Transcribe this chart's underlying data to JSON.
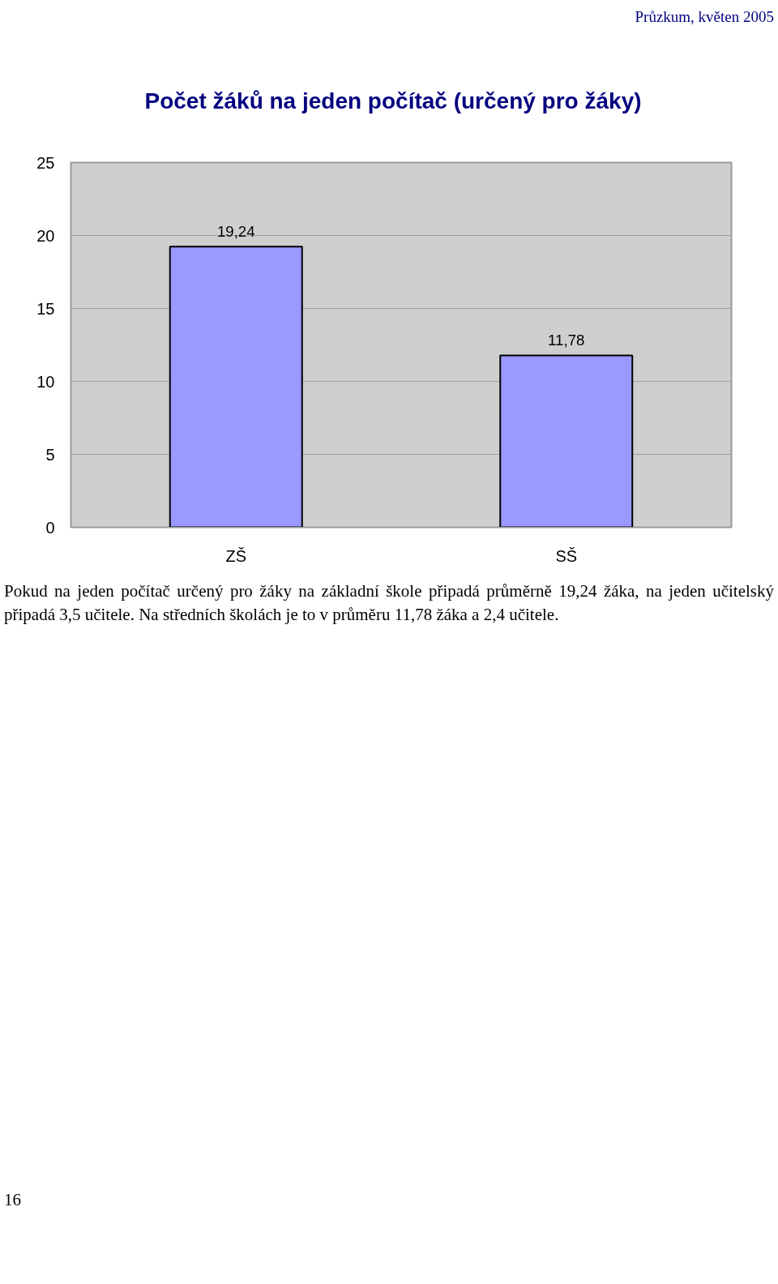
{
  "chart_data": {
    "type": "bar",
    "title": "Počet žáků na jeden počítač (určený pro žáky)",
    "categories": [
      "ZŠ",
      "SŠ"
    ],
    "values": [
      19.24,
      11.78
    ],
    "value_labels": [
      "19,24",
      "11,78"
    ],
    "color": "#9999ff",
    "ylim": [
      0,
      25
    ],
    "yticks": [
      0,
      5,
      10,
      15,
      20,
      25
    ],
    "grid": "y",
    "annotations": [
      "Průzkum, květen 2005",
      "Pokud na jeden počítač určený pro žáky na základní škole připadá průměrně 19,24 žáka, na jeden učitelský připadá 3,5 učitele. Na středních školách je to v průměru 11,78  žáka a 2,4 učitele.",
      "16"
    ]
  }
}
